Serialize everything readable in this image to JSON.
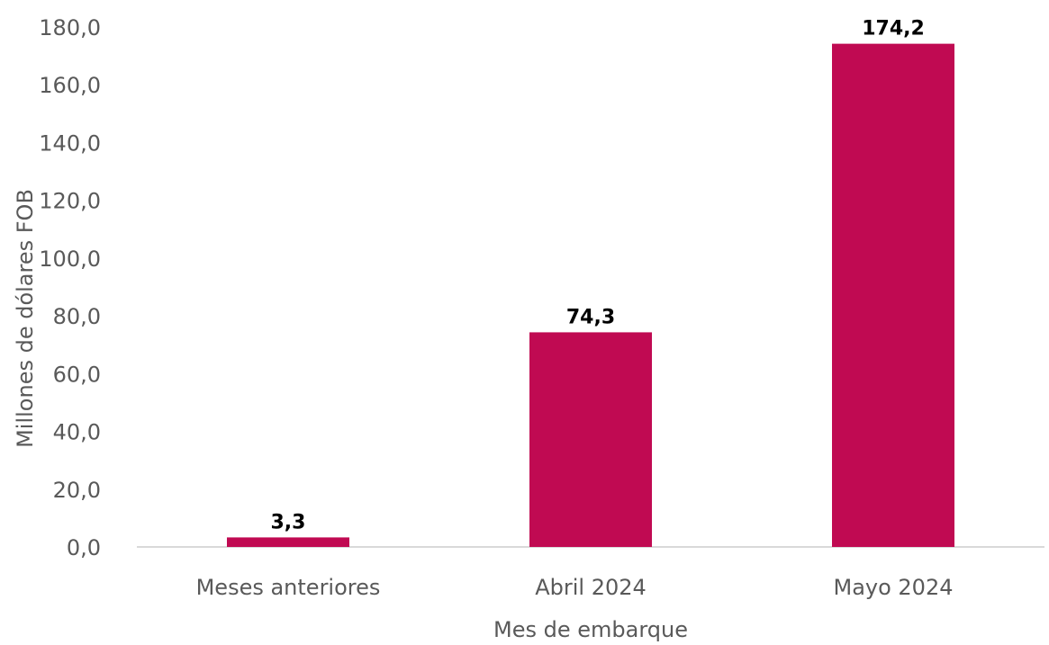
{
  "colors": {
    "bar": "#c00a52",
    "axis_line": "#d9d9d9",
    "text": "#595959",
    "data_label": "#000000"
  },
  "chart_data": {
    "type": "bar",
    "categories": [
      "Meses anteriores",
      "Abril 2024",
      "Mayo 2024"
    ],
    "values": [
      3.3,
      74.3,
      174.2
    ],
    "data_labels": [
      "3,3",
      "74,3",
      "174,2"
    ],
    "title": "",
    "xlabel": "Mes de embarque",
    "ylabel": "Millones de dólares FOB",
    "ylim": [
      0,
      180
    ],
    "y_ticks": [
      0,
      20,
      40,
      60,
      80,
      100,
      120,
      140,
      160,
      180
    ],
    "y_tick_labels": [
      "0,0",
      "20,0",
      "40,0",
      "60,0",
      "80,0",
      "100,0",
      "120,0",
      "140,0",
      "160,0",
      "180,0"
    ],
    "grid": false,
    "legend": "none"
  }
}
